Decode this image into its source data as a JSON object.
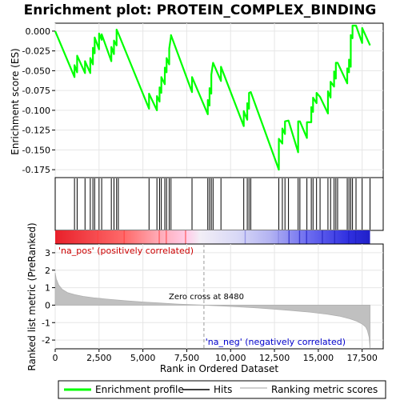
{
  "chart_data": {
    "type": "line",
    "title": "Enrichment plot: PROTEIN_COMPLEX_BINDING",
    "upper_panel": {
      "ylabel": "Enrichment score (ES)",
      "ylim": [
        -0.185,
        0.01
      ],
      "yticks": [
        0.0,
        -0.025,
        -0.05,
        -0.075,
        -0.1,
        -0.125,
        -0.15,
        -0.175
      ],
      "ytick_labels": [
        "0.000",
        "-0.025",
        "-0.050",
        "-0.075",
        "-0.100",
        "-0.125",
        "-0.150",
        "-0.175"
      ],
      "series": [
        {
          "name": "Enrichment profile",
          "color": "#00ff00",
          "x": [
            0,
            1100,
            1101,
            1250,
            1251,
            1700,
            1701,
            2000,
            2001,
            2150,
            2151,
            2250,
            2251,
            2500,
            2501,
            2650,
            2651,
            3200,
            3201,
            3350,
            3351,
            3500,
            3501,
            3600,
            3601,
            5350,
            5351,
            5800,
            5801,
            5950,
            5951,
            6050,
            6051,
            6250,
            6251,
            6350,
            6351,
            6500,
            6501,
            6600,
            6601,
            7800,
            7801,
            8700,
            8701,
            8800,
            8801,
            8900,
            8901,
            9000,
            9001,
            9450,
            9451,
            10750,
            10751,
            10950,
            10951,
            11050,
            11051,
            11150,
            11151,
            12750,
            12751,
            12950,
            12951,
            13100,
            13101,
            13300,
            13301,
            13850,
            13851,
            13950,
            13951,
            14350,
            14351,
            14600,
            14601,
            14700,
            14701,
            14900,
            14901,
            15100,
            15101,
            15550,
            15551,
            15700,
            15701,
            15900,
            15901,
            16000,
            16001,
            16100,
            16101,
            16650,
            16651,
            16750,
            16751,
            16850,
            16851,
            16950,
            16951,
            17150,
            17151,
            17500,
            17501,
            17950
          ],
          "y": [
            0.0,
            -0.058,
            -0.043,
            -0.052,
            -0.031,
            -0.053,
            -0.038,
            -0.053,
            -0.034,
            -0.042,
            -0.021,
            -0.028,
            -0.008,
            -0.023,
            -0.003,
            -0.011,
            -0.004,
            -0.038,
            -0.02,
            -0.029,
            -0.012,
            -0.018,
            0.002,
            -0.003,
            -0.003,
            -0.098,
            -0.079,
            -0.1,
            -0.082,
            -0.089,
            -0.071,
            -0.078,
            -0.058,
            -0.067,
            -0.046,
            -0.052,
            -0.034,
            -0.042,
            -0.022,
            -0.007,
            -0.005,
            -0.077,
            -0.058,
            -0.105,
            -0.087,
            -0.094,
            -0.072,
            -0.079,
            -0.055,
            -0.04,
            -0.04,
            -0.063,
            -0.045,
            -0.12,
            -0.101,
            -0.112,
            -0.091,
            -0.098,
            -0.078,
            -0.077,
            -0.077,
            -0.175,
            -0.136,
            -0.142,
            -0.123,
            -0.13,
            -0.114,
            -0.113,
            -0.113,
            -0.153,
            -0.114,
            -0.114,
            -0.114,
            -0.135,
            -0.115,
            -0.115,
            -0.096,
            -0.102,
            -0.084,
            -0.091,
            -0.078,
            -0.083,
            -0.083,
            -0.104,
            -0.076,
            -0.084,
            -0.064,
            -0.07,
            -0.051,
            -0.06,
            -0.04,
            -0.04,
            -0.04,
            -0.066,
            -0.047,
            -0.052,
            -0.036,
            -0.045,
            -0.005,
            -0.009,
            0.007,
            0.007,
            0.007,
            -0.015,
            0.004,
            -0.018
          ]
        }
      ]
    },
    "hits": [
      1100,
      1250,
      1700,
      2000,
      2150,
      2250,
      2500,
      2650,
      3200,
      3350,
      3500,
      3600,
      5350,
      5800,
      5950,
      6050,
      6250,
      6350,
      6500,
      6600,
      7800,
      8700,
      8800,
      8900,
      9000,
      9450,
      10750,
      10950,
      11050,
      11150,
      12750,
      12950,
      13100,
      13300,
      13850,
      13950,
      14350,
      14600,
      14700,
      14900,
      15100,
      15550,
      15700,
      15900,
      16000,
      16100,
      16650,
      16750,
      16850,
      16950,
      17150,
      17500,
      17950
    ],
    "heatmap_labels": {
      "pos": "'na_pos' (positively correlated)",
      "neg": "'na_neg' (negatively correlated)"
    },
    "colors": {
      "profile": "#00ff00",
      "hits": "#000000",
      "metric_fill": "#c0c0c0",
      "pos_label": "#cc0000",
      "neg_label": "#0000cc",
      "heat_pos": "#ff0000",
      "heat_neg": "#0000ff",
      "zero_line": "#999999"
    },
    "lower_panel": {
      "ylabel": "Ranked list metric (PreRanked)",
      "ylim": [
        -2.5,
        3.5
      ],
      "yticks": [
        3,
        2,
        1,
        0,
        -1,
        -2
      ],
      "ytick_labels": [
        "3",
        "2",
        "1",
        "0",
        "-1",
        "-2"
      ],
      "metric_x": [
        0,
        60,
        200,
        400,
        700,
        1100,
        1600,
        2200,
        3000,
        4000,
        5000,
        6000,
        7000,
        8480,
        9500,
        10500,
        11500,
        12500,
        13500,
        14500,
        15500,
        16200,
        16800,
        17200,
        17500,
        17700,
        17800,
        17900,
        17950
      ],
      "metric_y": [
        1.85,
        1.5,
        1.15,
        0.9,
        0.72,
        0.6,
        0.5,
        0.42,
        0.34,
        0.25,
        0.18,
        0.12,
        0.06,
        0.0,
        -0.05,
        -0.1,
        -0.16,
        -0.23,
        -0.31,
        -0.4,
        -0.52,
        -0.63,
        -0.78,
        -0.92,
        -1.08,
        -1.25,
        -1.45,
        -1.85,
        -2.45
      ],
      "zero_cross_label": "Zero cross at 8480",
      "zero_cross": 8480
    },
    "xlabel": "Rank in Ordered Dataset",
    "xlim": [
      0,
      18700
    ],
    "xticks": [
      0,
      2500,
      5000,
      7500,
      10000,
      12500,
      15000,
      17500
    ],
    "xtick_labels": [
      "0",
      "2,500",
      "5,000",
      "7,500",
      "10,000",
      "12,500",
      "15,000",
      "17,500"
    ],
    "legend": {
      "placement": "bottom",
      "items": [
        "Enrichment profile",
        "Hits",
        "Ranking metric scores"
      ]
    }
  }
}
